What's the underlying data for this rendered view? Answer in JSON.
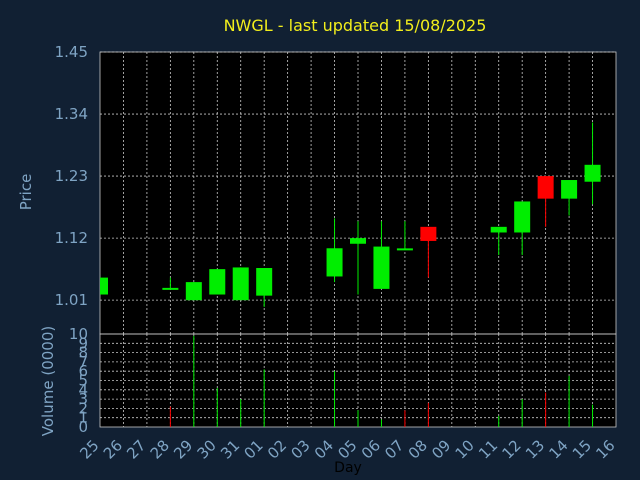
{
  "title": "NWGL - last updated 15/08/2025",
  "colors": {
    "background": "#112033",
    "plot": "#000000",
    "grid": "#c8c8c8",
    "up": "#00ee00",
    "down": "#ff0000",
    "title": "#f2ee1c",
    "ticks": "#7fa4c4"
  },
  "chart_data": [
    {
      "type": "candlestick",
      "title": "NWGL - last updated 15/08/2025",
      "xlabel": "",
      "ylabel": "Price",
      "ylim": [
        0.95,
        1.45
      ],
      "yticks": [
        "1.45",
        "1.34",
        "1.23",
        "1.12",
        "1.01"
      ],
      "grid": true,
      "x": [
        "25",
        "26",
        "27",
        "28",
        "29",
        "30",
        "31",
        "01",
        "02",
        "03",
        "04",
        "05",
        "06",
        "07",
        "08",
        "09",
        "10",
        "11",
        "12",
        "13",
        "14",
        "15",
        "16"
      ],
      "candles": [
        {
          "day": "25",
          "open": 1.02,
          "close": 1.05,
          "high": 1.05,
          "low": 1.02
        },
        {
          "day": "28",
          "open": 1.03,
          "close": 1.03,
          "high": 1.05,
          "low": 1.03
        },
        {
          "day": "29",
          "open": 1.01,
          "close": 1.042,
          "high": 1.042,
          "low": 1.01
        },
        {
          "day": "30",
          "open": 1.02,
          "close": 1.065,
          "high": 1.065,
          "low": 1.02
        },
        {
          "day": "31",
          "open": 1.01,
          "close": 1.068,
          "high": 1.068,
          "low": 1.01
        },
        {
          "day": "01",
          "open": 1.018,
          "close": 1.067,
          "high": 1.067,
          "low": 0.998
        },
        {
          "day": "04",
          "open": 1.052,
          "close": 1.102,
          "high": 1.155,
          "low": 1.042
        },
        {
          "day": "05",
          "open": 1.11,
          "close": 1.12,
          "high": 1.15,
          "low": 1.02
        },
        {
          "day": "06",
          "open": 1.03,
          "close": 1.105,
          "high": 1.15,
          "low": 1.03
        },
        {
          "day": "07",
          "open": 1.1,
          "close": 1.1,
          "high": 1.15,
          "low": 1.1
        },
        {
          "day": "08",
          "open": 1.14,
          "close": 1.115,
          "high": 1.14,
          "low": 1.05
        },
        {
          "day": "11",
          "open": 1.13,
          "close": 1.14,
          "high": 1.14,
          "low": 1.09
        },
        {
          "day": "12",
          "open": 1.13,
          "close": 1.185,
          "high": 1.185,
          "low": 1.09
        },
        {
          "day": "13",
          "open": 1.23,
          "close": 1.19,
          "high": 1.23,
          "low": 1.14
        },
        {
          "day": "14",
          "open": 1.19,
          "close": 1.223,
          "high": 1.223,
          "low": 1.16
        },
        {
          "day": "15",
          "open": 1.22,
          "close": 1.25,
          "high": 1.325,
          "low": 1.18
        }
      ]
    },
    {
      "type": "bar",
      "title": "",
      "xlabel": "Day",
      "ylabel": "Volume (0000)",
      "ylim": [
        0,
        10
      ],
      "yticks": [
        "10",
        "9",
        "8",
        "7",
        "6",
        "5",
        "4",
        "3",
        "2",
        "1",
        "0"
      ],
      "grid": true,
      "categories": [
        "25",
        "26",
        "27",
        "28",
        "29",
        "30",
        "31",
        "01",
        "02",
        "03",
        "04",
        "05",
        "06",
        "07",
        "08",
        "09",
        "10",
        "11",
        "12",
        "13",
        "14",
        "15",
        "16"
      ],
      "bars": [
        {
          "day": "28",
          "value": 2.2,
          "direction": "down"
        },
        {
          "day": "29",
          "value": 9.8,
          "direction": "up"
        },
        {
          "day": "30",
          "value": 4.2,
          "direction": "up"
        },
        {
          "day": "31",
          "value": 3.0,
          "direction": "up"
        },
        {
          "day": "01",
          "value": 6.2,
          "direction": "up"
        },
        {
          "day": "04",
          "value": 6.0,
          "direction": "up"
        },
        {
          "day": "05",
          "value": 1.8,
          "direction": "up"
        },
        {
          "day": "06",
          "value": 0.8,
          "direction": "up"
        },
        {
          "day": "07",
          "value": 1.8,
          "direction": "down"
        },
        {
          "day": "08",
          "value": 2.6,
          "direction": "down"
        },
        {
          "day": "11",
          "value": 1.2,
          "direction": "up"
        },
        {
          "day": "12",
          "value": 3.0,
          "direction": "up"
        },
        {
          "day": "13",
          "value": 3.7,
          "direction": "down"
        },
        {
          "day": "14",
          "value": 5.5,
          "direction": "up"
        },
        {
          "day": "15",
          "value": 2.4,
          "direction": "up"
        }
      ]
    }
  ]
}
